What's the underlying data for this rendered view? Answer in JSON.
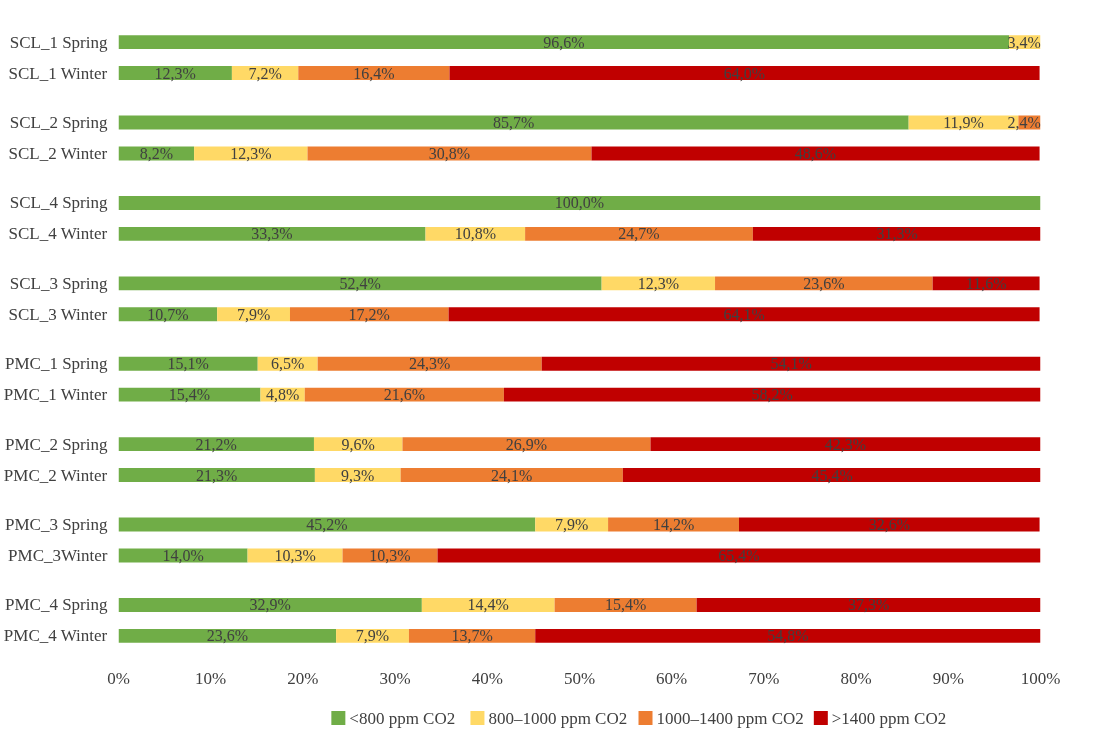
{
  "chart_data": {
    "type": "bar",
    "orientation": "horizontal",
    "stacked": true,
    "categories": [
      "SCL_1 Spring",
      "SCL_1 Winter",
      "SCL_2 Spring",
      "SCL_2 Winter",
      "SCL_4 Spring",
      "SCL_4 Winter",
      "SCL_3 Spring",
      "SCL_3 Winter",
      "PMC_1 Spring",
      "PMC_1 Winter",
      "PMC_2 Spring",
      "PMC_2 Winter",
      "PMC_3 Spring",
      "PMC_3Winter",
      "PMC_4 Spring",
      "PMC_4 Winter"
    ],
    "series": [
      {
        "name": "<800 ppm CO2",
        "color": "#70ad47",
        "values": [
          96.6,
          12.3,
          85.7,
          8.2,
          100.0,
          33.3,
          52.4,
          10.7,
          15.1,
          15.4,
          21.2,
          21.3,
          45.2,
          14.0,
          32.9,
          23.6
        ],
        "value_labels": [
          "96,6%",
          "12,3%",
          "85,7%",
          "8,2%",
          "100,0%",
          "33,3%",
          "52,4%",
          "10,7%",
          "15,1%",
          "15,4%",
          "21,2%",
          "21,3%",
          "45,2%",
          "14,0%",
          "32,9%",
          "23,6%"
        ]
      },
      {
        "name": "800–1000 ppm CO2",
        "color": "#ffd966",
        "values": [
          3.4,
          7.2,
          11.9,
          12.3,
          null,
          10.8,
          12.3,
          7.9,
          6.5,
          4.8,
          9.6,
          9.3,
          7.9,
          10.3,
          14.4,
          7.9
        ],
        "value_labels": [
          "3,4%",
          "7,2%",
          "11,9%",
          "12,3%",
          null,
          "10,8%",
          "12,3%",
          "7,9%",
          "6,5%",
          "4,8%",
          "9,6%",
          "9,3%",
          "7,9%",
          "10,3%",
          "14,4%",
          "7,9%"
        ]
      },
      {
        "name": "1000–1400 ppm CO2",
        "color": "#ed7d31",
        "values": [
          null,
          16.4,
          2.4,
          30.8,
          null,
          24.7,
          23.6,
          17.2,
          24.3,
          21.6,
          26.9,
          24.1,
          14.2,
          10.3,
          15.4,
          13.7
        ],
        "value_labels": [
          null,
          "16,4%",
          "2,4%",
          "30,8%",
          null,
          "24,7%",
          "23,6%",
          "17,2%",
          "24,3%",
          "21,6%",
          "26,9%",
          "24,1%",
          "14,2%",
          "10,3%",
          "15,4%",
          "13,7%"
        ]
      },
      {
        "name": ">1400 ppm CO2",
        "color": "#c00000",
        "values": [
          null,
          64.0,
          null,
          48.6,
          null,
          31.3,
          11.6,
          64.1,
          54.1,
          58.2,
          42.3,
          45.4,
          32.6,
          65.4,
          37.3,
          54.8
        ],
        "value_labels": [
          null,
          "64,0%",
          null,
          "48,6%",
          null,
          "31,3%",
          "11,6%",
          "64,1%",
          "54,1%",
          "58,2%",
          "42,3%",
          "45,4%",
          "32,6%",
          "65,4%",
          "37,3%",
          "54,8%"
        ]
      }
    ],
    "xlim": [
      0,
      100
    ],
    "xticks": [
      {
        "value": 0,
        "label": "0%"
      },
      {
        "value": 10,
        "label": "10%"
      },
      {
        "value": 20,
        "label": "20%"
      },
      {
        "value": 30,
        "label": "30%"
      },
      {
        "value": 40,
        "label": "40%"
      },
      {
        "value": 50,
        "label": "50%"
      },
      {
        "value": 60,
        "label": "60%"
      },
      {
        "value": 70,
        "label": "70%"
      },
      {
        "value": 80,
        "label": "80%"
      },
      {
        "value": 90,
        "label": "90%"
      },
      {
        "value": 100,
        "label": "100%"
      }
    ],
    "grid": false,
    "legend": "bottom"
  }
}
